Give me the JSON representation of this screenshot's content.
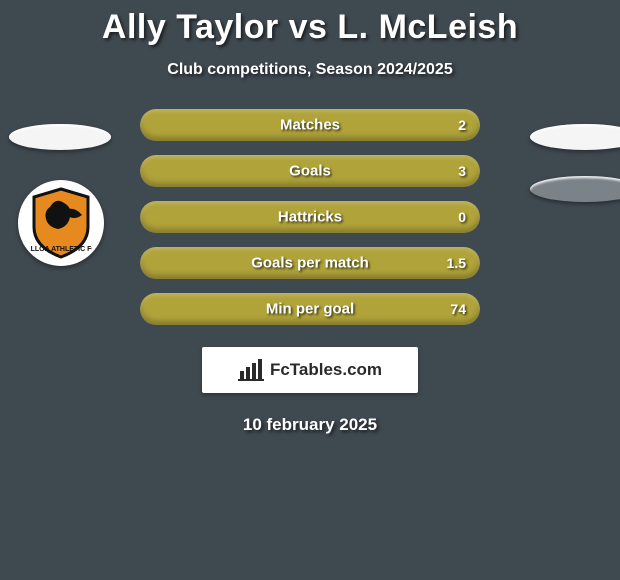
{
  "title": "Ally Taylor vs L. McLeish",
  "subtitle": "Club competitions, Season 2024/2025",
  "colors": {
    "bar_fill": "#b0a33a",
    "background": "#3f4950"
  },
  "stats": [
    {
      "label": "Matches",
      "value": "2",
      "fill_pct": 100
    },
    {
      "label": "Goals",
      "value": "3",
      "fill_pct": 100
    },
    {
      "label": "Hattricks",
      "value": "0",
      "fill_pct": 100
    },
    {
      "label": "Goals per match",
      "value": "1.5",
      "fill_pct": 100
    },
    {
      "label": "Min per goal",
      "value": "74",
      "fill_pct": 100
    }
  ],
  "footer_brand": "FcTables.com",
  "date": "10 february 2025",
  "club_badge": {
    "name": "alloa-athletic-fc",
    "shield_color": "#e68a1f",
    "outline_color": "#111111",
    "silhouette_color": "#111111"
  }
}
